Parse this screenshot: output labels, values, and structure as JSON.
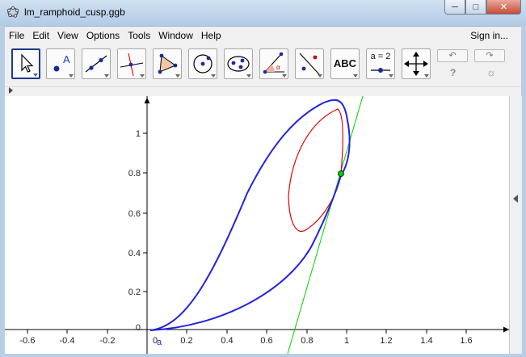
{
  "window": {
    "title": "lm_ramphoid_cusp.ggb"
  },
  "window_controls": {
    "minimize": "─",
    "maximize": "□",
    "close": "✕"
  },
  "menu": {
    "items": [
      "File",
      "Edit",
      "View",
      "Options",
      "Tools",
      "Window",
      "Help"
    ],
    "sign_in": "Sign in..."
  },
  "toolbar": {
    "tools": [
      "move",
      "point",
      "line",
      "perpendicular-line",
      "polygon",
      "circle",
      "conic",
      "angle",
      "reflect",
      "text",
      "slider",
      "move-graphics-view"
    ],
    "text_tool_label": "ABC",
    "slider_tool_label": "a = 2",
    "undo": "↶",
    "redo": "↷",
    "help": "?",
    "settings": "☼"
  },
  "graphics": {
    "x_ticks": [
      "-0.6",
      "-0.4",
      "-0.2",
      "0.2",
      "0.4",
      "0.6",
      "0.8",
      "1",
      "1.2",
      "1.4",
      "1.6"
    ],
    "y_ticks": [
      "0.2",
      "0.4",
      "0.6",
      "0.8",
      "1"
    ],
    "origin_label": "0",
    "y_zero_label": "0",
    "slider_label": "a",
    "curve_color": "#2222e0",
    "ellipse_color": "#e00000",
    "tangent_color": "#00d000",
    "point_color": "#00cc00"
  }
}
